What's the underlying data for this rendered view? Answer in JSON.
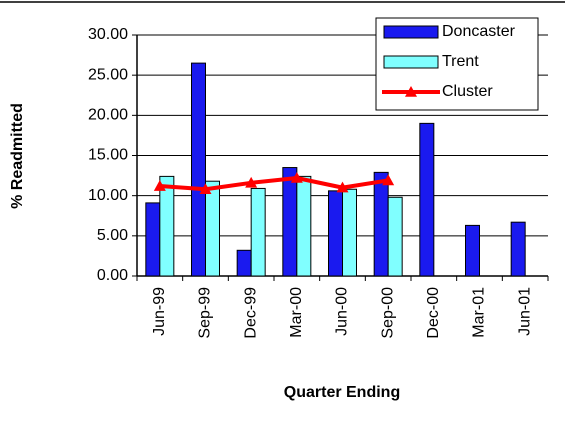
{
  "chart_data": {
    "type": "bar",
    "y_label": "% Readmitted",
    "x_label": "Quarter Ending",
    "categories": [
      "Jun-99",
      "Sep-99",
      "Dec-99",
      "Mar-00",
      "Jun-00",
      "Sep-00",
      "Dec-00",
      "Mar-01",
      "Jun-01"
    ],
    "series": [
      {
        "name": "Doncaster",
        "type": "bar",
        "color": "#1a1aef",
        "values": [
          9.1,
          26.5,
          3.2,
          13.5,
          10.6,
          12.9,
          19.0,
          6.3,
          6.7
        ]
      },
      {
        "name": "Trent",
        "type": "bar",
        "color": "#80ffff",
        "values": [
          12.4,
          11.8,
          10.9,
          12.4,
          10.8,
          9.8,
          null,
          null,
          null
        ]
      },
      {
        "name": "Cluster",
        "type": "line",
        "color": "#ff0000",
        "values": [
          11.2,
          10.8,
          11.6,
          12.2,
          11.0,
          11.9,
          null,
          null,
          null
        ]
      }
    ],
    "ylim": [
      0,
      30
    ],
    "yticks": [
      {
        "value": 0,
        "label": "0.00"
      },
      {
        "value": 5,
        "label": "5.00"
      },
      {
        "value": 10,
        "label": "10.00"
      },
      {
        "value": 15,
        "label": "15.00"
      },
      {
        "value": 20,
        "label": "20.00"
      },
      {
        "value": 25,
        "label": "25.00"
      },
      {
        "value": 30,
        "label": "30.00"
      }
    ],
    "grid": true,
    "legend": "top-right"
  }
}
